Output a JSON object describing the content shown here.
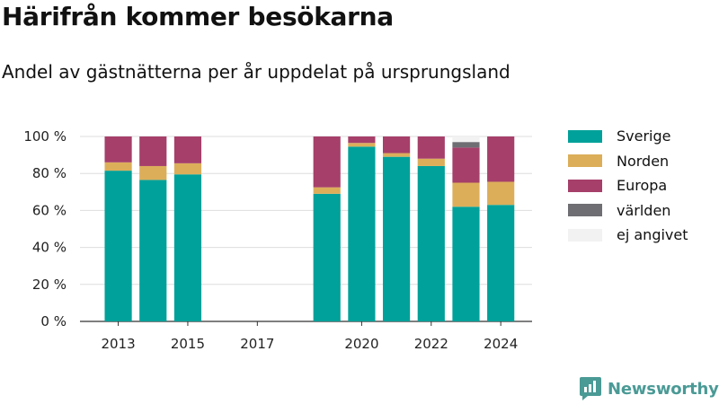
{
  "title": "Härifrån kommer besökarna",
  "subtitle": "Andel av gästnätterna per år uppdelat på ursprungsland",
  "brand": {
    "name": "Newsworthy",
    "icon": "newsworthy-logo-icon"
  },
  "colors": {
    "Sverige": "#00a19a",
    "Norden": "#dcae5a",
    "Europa": "#a63f6a",
    "världen": "#6e6e73",
    "ej angivet": "#f2f2f2",
    "brand": "#4a9a96",
    "grid": "#dddddd",
    "axis": "#333333"
  },
  "chart_data": {
    "type": "bar",
    "stacked": true,
    "title": "Härifrån kommer besökarna",
    "subtitle": "Andel av gästnätterna per år uppdelat på ursprungsland",
    "xlabel": "",
    "ylabel": "",
    "x_ticks": [
      "2013",
      "2015",
      "2017",
      "2020",
      "2022",
      "2024"
    ],
    "y_ticks": [
      "0 %",
      "20 %",
      "40 %",
      "60 %",
      "80 %",
      "100 %"
    ],
    "ylim": [
      0,
      100
    ],
    "xlim": [
      2011.9,
      2024.9
    ],
    "grid": true,
    "legend": "right",
    "categories": [
      "2013",
      "2014",
      "2015",
      "2016",
      "2017",
      "2018",
      "2019",
      "2020",
      "2021",
      "2022",
      "2023",
      "2024"
    ],
    "series": [
      {
        "name": "Sverige",
        "values": [
          81.5,
          76.5,
          79.5,
          null,
          null,
          null,
          69,
          94.5,
          89,
          84,
          62,
          63
        ]
      },
      {
        "name": "Norden",
        "values": [
          4.5,
          7.5,
          6,
          null,
          null,
          null,
          3.5,
          2,
          2,
          4,
          13,
          12.5
        ]
      },
      {
        "name": "Europa",
        "values": [
          14,
          16,
          14.5,
          null,
          null,
          null,
          27.5,
          3.5,
          9,
          12,
          19,
          24.5
        ]
      },
      {
        "name": "världen",
        "values": [
          0,
          0,
          0,
          null,
          null,
          null,
          0,
          0,
          0,
          0,
          3,
          0
        ]
      },
      {
        "name": "ej angivet",
        "values": [
          0,
          0,
          0,
          null,
          null,
          null,
          0,
          0,
          0,
          0,
          3,
          0
        ]
      }
    ]
  }
}
